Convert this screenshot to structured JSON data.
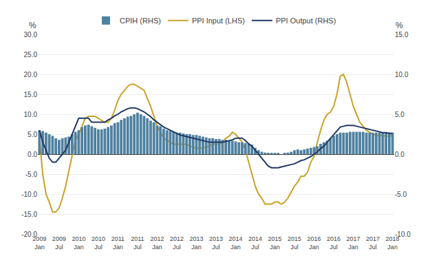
{
  "chart_data": {
    "type": "bar",
    "ylabel": "%",
    "y2label": "%",
    "categories": [
      "2009\nJan",
      null,
      null,
      null,
      null,
      null,
      "2009\nJul",
      null,
      null,
      null,
      null,
      null,
      "2010\nJan",
      null,
      null,
      null,
      null,
      null,
      "2010\nJul",
      null,
      null,
      null,
      null,
      null,
      "2011\nJan",
      null,
      null,
      null,
      null,
      null,
      "2011\nJul",
      null,
      null,
      null,
      null,
      null,
      "2012\nJan",
      null,
      null,
      null,
      null,
      null,
      "2012\nJul",
      null,
      null,
      null,
      null,
      null,
      "2013\nJan",
      null,
      null,
      null,
      null,
      null,
      "2013\nJul",
      null,
      null,
      null,
      null,
      null,
      "2014\nJan",
      null,
      null,
      null,
      null,
      null,
      "2014\nJul",
      null,
      null,
      null,
      null,
      null,
      "2015\nJan",
      null,
      null,
      null,
      null,
      null,
      "2015\nJul",
      null,
      null,
      null,
      null,
      null,
      "2016\nJan",
      null,
      null,
      null,
      null,
      null,
      "2016\nJul",
      null,
      null,
      null,
      null,
      null,
      "2017\nJan",
      null,
      null,
      null,
      null,
      null,
      "2017\nJul",
      null,
      null,
      null,
      null,
      null,
      "2018\nJan"
    ],
    "series": [
      {
        "name": "CPIH (RHS)",
        "type": "bar",
        "axis": "y2",
        "color": "#4f81a0",
        "values": [
          3.0,
          2.9,
          2.7,
          2.5,
          2.3,
          2.0,
          1.8,
          2.0,
          2.1,
          2.2,
          2.5,
          2.8,
          3.0,
          3.4,
          3.6,
          3.7,
          3.5,
          3.3,
          3.1,
          3.1,
          3.2,
          3.4,
          3.6,
          3.9,
          4.0,
          4.3,
          4.5,
          4.7,
          4.8,
          5.0,
          5.2,
          5.0,
          4.8,
          4.5,
          4.2,
          4.0,
          3.6,
          3.5,
          3.2,
          3.0,
          2.9,
          2.8,
          2.7,
          2.7,
          2.6,
          2.5,
          2.5,
          2.4,
          2.4,
          2.3,
          2.2,
          2.1,
          2.0,
          2.0,
          1.9,
          1.9,
          1.8,
          1.8,
          1.7,
          1.7,
          1.6,
          1.5,
          1.5,
          1.4,
          1.3,
          1.2,
          0.8,
          0.5,
          0.3,
          0.2,
          0.1,
          0.1,
          0.1,
          0.1,
          0.0,
          0.1,
          0.2,
          0.3,
          0.5,
          0.6,
          0.5,
          0.6,
          0.7,
          0.8,
          0.9,
          1.0,
          1.3,
          1.5,
          1.7,
          2.0,
          2.3,
          2.5,
          2.7,
          2.7,
          2.7,
          2.8,
          2.8,
          2.8,
          2.8,
          2.8,
          2.7,
          2.7,
          2.7,
          2.7,
          2.7,
          2.7,
          2.7,
          2.7,
          2.7
        ]
      },
      {
        "name": "PPI Input (LHS)",
        "type": "line",
        "axis": "y",
        "color": "#c9a227",
        "values": [
          4.0,
          -5.0,
          -10.0,
          -12.0,
          -14.5,
          -14.5,
          -13.5,
          -11.0,
          -8.0,
          -4.0,
          0.0,
          3.5,
          5.0,
          7.0,
          9.0,
          9.5,
          9.5,
          9.5,
          9.0,
          8.5,
          8.0,
          8.0,
          9.0,
          11.0,
          13.5,
          15.0,
          16.0,
          17.0,
          17.5,
          17.5,
          17.0,
          16.5,
          16.0,
          14.0,
          12.0,
          9.5,
          7.0,
          5.5,
          4.0,
          3.5,
          3.0,
          2.5,
          2.5,
          2.5,
          2.5,
          2.5,
          2.0,
          1.8,
          1.5,
          1.5,
          1.5,
          1.8,
          2.0,
          2.5,
          2.5,
          2.5,
          3.0,
          4.0,
          4.5,
          5.5,
          5.0,
          4.0,
          3.0,
          1.0,
          -2.0,
          -5.0,
          -8.0,
          -10.0,
          -11.0,
          -12.5,
          -12.5,
          -12.5,
          -12.0,
          -12.0,
          -12.5,
          -12.0,
          -11.0,
          -9.5,
          -8.0,
          -7.0,
          -5.5,
          -5.5,
          -4.5,
          -2.0,
          -0.5,
          3.0,
          6.0,
          8.5,
          10.0,
          10.5,
          12.0,
          15.0,
          19.5,
          20.0,
          18.0,
          15.0,
          12.0,
          10.0,
          8.0,
          7.0,
          6.0,
          5.5,
          5.0,
          4.8,
          4.7,
          4.6,
          4.5,
          4.5,
          4.7
        ]
      },
      {
        "name": "PPI Output (RHS)",
        "type": "line",
        "axis": "y2",
        "color": "#1f3864",
        "values": [
          3.0,
          1.5,
          0.5,
          -0.5,
          -1.0,
          -1.0,
          -0.5,
          0.0,
          0.5,
          1.5,
          2.5,
          3.5,
          4.5,
          4.5,
          4.5,
          4.5,
          4.0,
          4.0,
          4.0,
          4.0,
          4.0,
          4.3,
          4.5,
          4.8,
          5.0,
          5.3,
          5.5,
          5.7,
          5.8,
          5.8,
          5.7,
          5.5,
          5.3,
          5.0,
          4.7,
          4.3,
          4.0,
          3.7,
          3.4,
          3.2,
          3.0,
          2.8,
          2.6,
          2.4,
          2.3,
          2.2,
          2.1,
          2.0,
          1.9,
          1.8,
          1.7,
          1.6,
          1.5,
          1.5,
          1.5,
          1.5,
          1.5,
          1.6,
          1.7,
          1.8,
          2.0,
          2.0,
          2.0,
          1.7,
          1.3,
          1.0,
          0.5,
          0.0,
          -0.5,
          -1.0,
          -1.5,
          -1.7,
          -1.7,
          -1.7,
          -1.6,
          -1.5,
          -1.4,
          -1.3,
          -1.2,
          -1.0,
          -0.8,
          -0.7,
          -0.5,
          -0.3,
          0.0,
          0.3,
          0.7,
          1.0,
          1.5,
          2.0,
          2.5,
          3.0,
          3.4,
          3.5,
          3.6,
          3.6,
          3.6,
          3.5,
          3.4,
          3.3,
          3.2,
          3.1,
          3.0,
          2.9,
          2.8,
          2.7,
          2.7,
          2.6,
          2.6
        ]
      }
    ],
    "ylim": [
      -20.0,
      30.0
    ],
    "yticks": [
      {
        "value": -20.0,
        "label": "-20.0"
      },
      {
        "value": -15.0,
        "label": "-15.0"
      },
      {
        "value": -10.0,
        "label": "-10.0"
      },
      {
        "value": -5.0,
        "label": "-5.0"
      },
      {
        "value": 0.0,
        "label": "0.0"
      },
      {
        "value": 5.0,
        "label": "5.0"
      },
      {
        "value": 10.0,
        "label": "10.0"
      },
      {
        "value": 15.0,
        "label": "15.0"
      },
      {
        "value": 20.0,
        "label": "20.0"
      },
      {
        "value": 25.0,
        "label": "25.0"
      },
      {
        "value": 30.0,
        "label": "30.0"
      }
    ],
    "y2lim": [
      -10.0,
      15.0
    ],
    "y2ticks": [
      {
        "value": -10.0,
        "label": "-10.0"
      },
      {
        "value": -5.0,
        "label": "-5.0"
      },
      {
        "value": 0.0,
        "label": "0.0"
      },
      {
        "value": 5.0,
        "label": "5.0"
      },
      {
        "value": 10.0,
        "label": "10.0"
      },
      {
        "value": 15.0,
        "label": "15.0"
      }
    ],
    "grid": true,
    "legend": "top"
  }
}
